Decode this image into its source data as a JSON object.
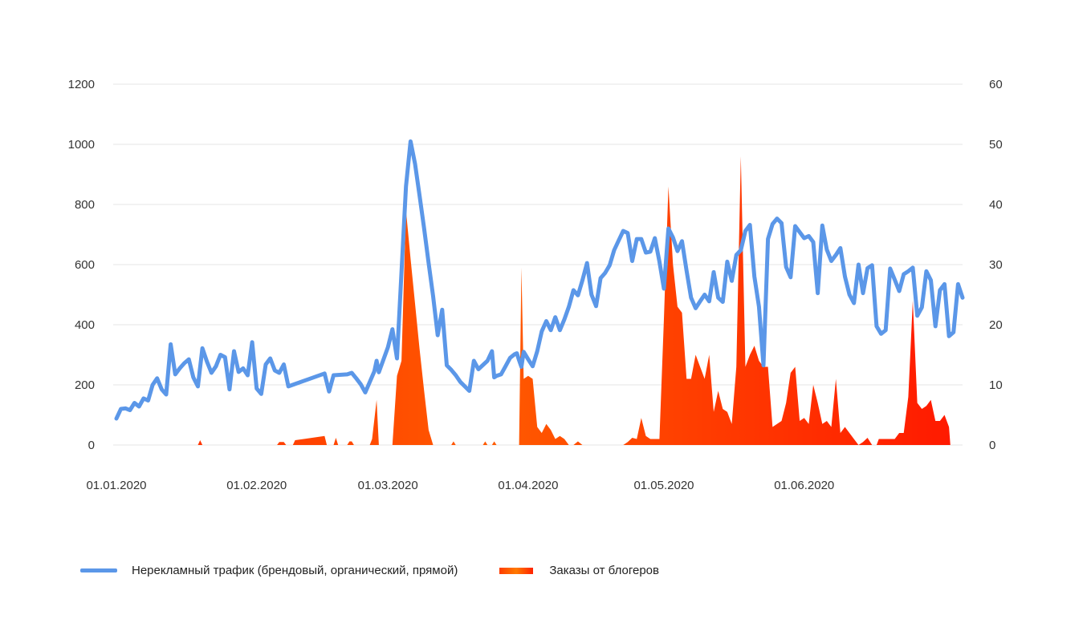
{
  "chart_data": {
    "type": "line+area",
    "title": "",
    "y_left": {
      "ticks": [
        "1200",
        "1000",
        "800",
        "600",
        "400",
        "200",
        "0"
      ],
      "ylim": [
        0,
        1200
      ]
    },
    "y_right": {
      "ticks": [
        "60",
        "50",
        "40",
        "30",
        "20",
        "10",
        "0"
      ],
      "ylim": [
        0,
        60
      ]
    },
    "x_tick_labels": [
      {
        "label": "01.01.2020",
        "day": 0
      },
      {
        "label": "01.02.2020",
        "day": 31
      },
      {
        "label": "01.03.2020",
        "day": 60
      },
      {
        "label": "01.04.2020",
        "day": 91
      },
      {
        "label": "01.05.2020",
        "day": 121
      },
      {
        "label": "01.06.2020",
        "day": 152
      }
    ],
    "grid": true,
    "legend_position": "bottom",
    "series": [
      {
        "name": "Нерекламный трафик (брендовый, органический, прямой)",
        "axis": "left",
        "type": "line",
        "color": "#5b97e8",
        "points": [
          [
            0,
            88
          ],
          [
            1,
            120
          ],
          [
            2,
            122
          ],
          [
            3,
            116
          ],
          [
            4,
            140
          ],
          [
            5,
            128
          ],
          [
            6,
            155
          ],
          [
            7,
            148
          ],
          [
            8,
            200
          ],
          [
            9,
            222
          ],
          [
            10,
            185
          ],
          [
            11,
            168
          ],
          [
            12,
            335
          ],
          [
            13,
            235
          ],
          [
            14,
            255
          ],
          [
            15,
            272
          ],
          [
            16,
            285
          ],
          [
            17,
            225
          ],
          [
            18,
            195
          ],
          [
            19,
            322
          ],
          [
            20,
            278
          ],
          [
            21,
            240
          ],
          [
            22,
            262
          ],
          [
            23,
            300
          ],
          [
            24,
            292
          ],
          [
            25,
            185
          ],
          [
            26,
            312
          ],
          [
            27,
            243
          ],
          [
            28,
            255
          ],
          [
            29,
            232
          ],
          [
            30,
            342
          ],
          [
            31,
            188
          ],
          [
            32,
            170
          ],
          [
            33,
            268
          ],
          [
            34,
            288
          ],
          [
            35,
            248
          ],
          [
            36,
            240
          ],
          [
            37,
            268
          ],
          [
            38,
            195
          ],
          [
            46,
            238
          ],
          [
            47,
            178
          ],
          [
            48,
            232
          ],
          [
            51,
            235
          ],
          [
            52,
            240
          ],
          [
            53,
            222
          ],
          [
            54,
            202
          ],
          [
            55,
            175
          ],
          [
            57,
            245
          ],
          [
            57.5,
            280
          ],
          [
            58,
            242
          ],
          [
            60,
            325
          ],
          [
            61,
            385
          ],
          [
            62,
            288
          ],
          [
            64,
            860
          ],
          [
            65,
            1010
          ],
          [
            66,
            935
          ],
          [
            67,
            830
          ],
          [
            68,
            720
          ],
          [
            69,
            605
          ],
          [
            70,
            495
          ],
          [
            71,
            365
          ],
          [
            72,
            450
          ],
          [
            73,
            265
          ],
          [
            74,
            250
          ],
          [
            75,
            232
          ],
          [
            76,
            210
          ],
          [
            77,
            195
          ],
          [
            78,
            180
          ],
          [
            79,
            280
          ],
          [
            80,
            252
          ],
          [
            82,
            280
          ],
          [
            83,
            312
          ],
          [
            83.5,
            225
          ],
          [
            84,
            230
          ],
          [
            85,
            235
          ],
          [
            86,
            262
          ],
          [
            87,
            290
          ],
          [
            88,
            302
          ],
          [
            88.5,
            305
          ],
          [
            89,
            282
          ],
          [
            89.5,
            260
          ],
          [
            90,
            310
          ],
          [
            91,
            285
          ],
          [
            92,
            262
          ],
          [
            93,
            312
          ],
          [
            94,
            378
          ],
          [
            95,
            412
          ],
          [
            96,
            382
          ],
          [
            97,
            425
          ],
          [
            98,
            382
          ],
          [
            99,
            418
          ],
          [
            100,
            460
          ],
          [
            101,
            515
          ],
          [
            102,
            498
          ],
          [
            103,
            548
          ],
          [
            104,
            605
          ],
          [
            105,
            500
          ],
          [
            106,
            462
          ],
          [
            107,
            555
          ],
          [
            108,
            572
          ],
          [
            109,
            598
          ],
          [
            110,
            648
          ],
          [
            111,
            680
          ],
          [
            112,
            712
          ],
          [
            113,
            705
          ],
          [
            114,
            612
          ],
          [
            115,
            685
          ],
          [
            116,
            685
          ],
          [
            117,
            640
          ],
          [
            118,
            643
          ],
          [
            119,
            688
          ],
          [
            120,
            610
          ],
          [
            121,
            520
          ],
          [
            122,
            720
          ],
          [
            123,
            690
          ],
          [
            124,
            645
          ],
          [
            125,
            678
          ],
          [
            126,
            580
          ],
          [
            127,
            490
          ],
          [
            128,
            455
          ],
          [
            129,
            478
          ],
          [
            130,
            500
          ],
          [
            131,
            478
          ],
          [
            132,
            575
          ],
          [
            133,
            490
          ],
          [
            134,
            476
          ],
          [
            135,
            610
          ],
          [
            136,
            546
          ],
          [
            137,
            632
          ],
          [
            138,
            648
          ],
          [
            139,
            712
          ],
          [
            140,
            732
          ],
          [
            141,
            560
          ],
          [
            142,
            460
          ],
          [
            143,
            265
          ],
          [
            144,
            685
          ],
          [
            145,
            735
          ],
          [
            146,
            753
          ],
          [
            147,
            738
          ],
          [
            148,
            592
          ],
          [
            149,
            558
          ],
          [
            150,
            728
          ],
          [
            151,
            708
          ],
          [
            152,
            688
          ],
          [
            153,
            695
          ],
          [
            154,
            675
          ],
          [
            155,
            505
          ],
          [
            156,
            730
          ],
          [
            157,
            650
          ],
          [
            158,
            612
          ],
          [
            159,
            632
          ],
          [
            160,
            655
          ],
          [
            161,
            560
          ],
          [
            162,
            500
          ],
          [
            163,
            472
          ],
          [
            164,
            600
          ],
          [
            165,
            505
          ],
          [
            166,
            588
          ],
          [
            167,
            598
          ],
          [
            168,
            395
          ],
          [
            169,
            370
          ],
          [
            170,
            382
          ],
          [
            171,
            587
          ],
          [
            172,
            550
          ],
          [
            173,
            512
          ],
          [
            174,
            568
          ],
          [
            175,
            578
          ],
          [
            176,
            590
          ],
          [
            177,
            430
          ],
          [
            178,
            458
          ],
          [
            179,
            578
          ],
          [
            180,
            548
          ],
          [
            181,
            395
          ],
          [
            182,
            515
          ],
          [
            183,
            535
          ],
          [
            184,
            362
          ],
          [
            185,
            375
          ],
          [
            186,
            535
          ],
          [
            187,
            490
          ]
        ]
      },
      {
        "name": "Заказы от блогеров",
        "axis": "right",
        "type": "area",
        "color": "#ff3300",
        "points": [
          [
            0,
            0
          ],
          [
            18,
            0
          ],
          [
            18.5,
            0.8
          ],
          [
            19,
            0
          ],
          [
            35.5,
            0
          ],
          [
            36,
            0.5
          ],
          [
            37,
            0.5
          ],
          [
            37.5,
            0
          ],
          [
            39,
            0
          ],
          [
            39.5,
            0.8
          ],
          [
            46,
            1.5
          ],
          [
            46.5,
            0
          ],
          [
            48,
            0
          ],
          [
            48.5,
            1.2
          ],
          [
            49,
            0
          ],
          [
            51,
            0
          ],
          [
            51.5,
            0.6
          ],
          [
            52,
            0.6
          ],
          [
            52.5,
            0
          ],
          [
            56,
            0
          ],
          [
            56.5,
            1
          ],
          [
            57.5,
            7.5
          ],
          [
            58,
            0
          ],
          [
            61,
            0
          ],
          [
            62,
            11.5
          ],
          [
            63,
            14
          ],
          [
            64,
            39
          ],
          [
            65,
            31
          ],
          [
            66,
            23.5
          ],
          [
            67,
            16
          ],
          [
            68,
            9
          ],
          [
            69,
            2.5
          ],
          [
            70,
            0
          ],
          [
            74,
            0
          ],
          [
            74.5,
            0.6
          ],
          [
            75,
            0
          ],
          [
            81,
            0
          ],
          [
            81.5,
            0.6
          ],
          [
            82,
            0
          ],
          [
            83,
            0
          ],
          [
            83.5,
            0.6
          ],
          [
            84,
            0
          ],
          [
            89,
            0
          ],
          [
            89.5,
            29.5
          ],
          [
            90,
            11
          ],
          [
            91,
            11.5
          ],
          [
            92,
            11
          ],
          [
            93,
            3
          ],
          [
            94,
            2
          ],
          [
            95,
            3.5
          ],
          [
            96,
            2.5
          ],
          [
            97,
            1
          ],
          [
            98,
            1.5
          ],
          [
            99,
            1
          ],
          [
            100,
            0
          ],
          [
            101,
            0
          ],
          [
            102,
            0.6
          ],
          [
            103,
            0
          ],
          [
            112,
            0
          ],
          [
            113,
            0.5
          ],
          [
            114,
            1.2
          ],
          [
            115,
            1
          ],
          [
            116,
            4.5
          ],
          [
            117,
            1.5
          ],
          [
            118,
            1
          ],
          [
            119,
            1
          ],
          [
            120,
            1
          ],
          [
            121,
            21
          ],
          [
            122,
            43
          ],
          [
            123,
            30
          ],
          [
            124,
            23
          ],
          [
            125,
            22
          ],
          [
            126,
            11
          ],
          [
            127,
            11
          ],
          [
            128,
            15
          ],
          [
            129,
            13
          ],
          [
            130,
            11
          ],
          [
            131,
            15
          ],
          [
            132,
            5.5
          ],
          [
            133,
            9
          ],
          [
            134,
            6
          ],
          [
            135,
            5.5
          ],
          [
            136,
            3.5
          ],
          [
            137,
            13
          ],
          [
            138,
            48
          ],
          [
            139,
            13
          ],
          [
            140,
            15
          ],
          [
            141,
            16.5
          ],
          [
            142,
            14
          ],
          [
            143,
            13
          ],
          [
            144,
            13
          ],
          [
            145,
            3
          ],
          [
            146,
            3.5
          ],
          [
            147,
            4
          ],
          [
            148,
            7
          ],
          [
            149,
            12
          ],
          [
            150,
            13
          ],
          [
            151,
            4
          ],
          [
            152,
            4.5
          ],
          [
            153,
            3.5
          ],
          [
            154,
            10
          ],
          [
            155,
            7
          ],
          [
            156,
            3.5
          ],
          [
            157,
            4
          ],
          [
            158,
            3
          ],
          [
            159,
            11
          ],
          [
            160,
            2
          ],
          [
            161,
            3
          ],
          [
            162,
            2
          ],
          [
            163,
            1
          ],
          [
            164,
            0
          ],
          [
            165,
            0.5
          ],
          [
            166,
            1.2
          ],
          [
            167,
            0
          ],
          [
            168,
            0
          ],
          [
            168.5,
            1
          ],
          [
            169,
            1
          ],
          [
            170,
            1
          ],
          [
            171,
            1
          ],
          [
            172,
            1
          ],
          [
            173,
            2
          ],
          [
            174,
            2
          ],
          [
            175,
            8
          ],
          [
            176,
            24
          ],
          [
            177,
            7
          ],
          [
            178,
            6
          ],
          [
            179,
            6.5
          ],
          [
            180,
            7.5
          ],
          [
            181,
            4
          ],
          [
            182,
            4
          ],
          [
            183,
            5
          ],
          [
            184,
            3
          ],
          [
            184.3,
            0
          ]
        ]
      }
    ]
  },
  "legend": {
    "items": [
      {
        "label": "Нерекламный трафик (брендовый, органический, прямой)",
        "color": "#5b97e8"
      },
      {
        "label": "Заказы от блогеров",
        "color": "#ff3300"
      }
    ]
  }
}
